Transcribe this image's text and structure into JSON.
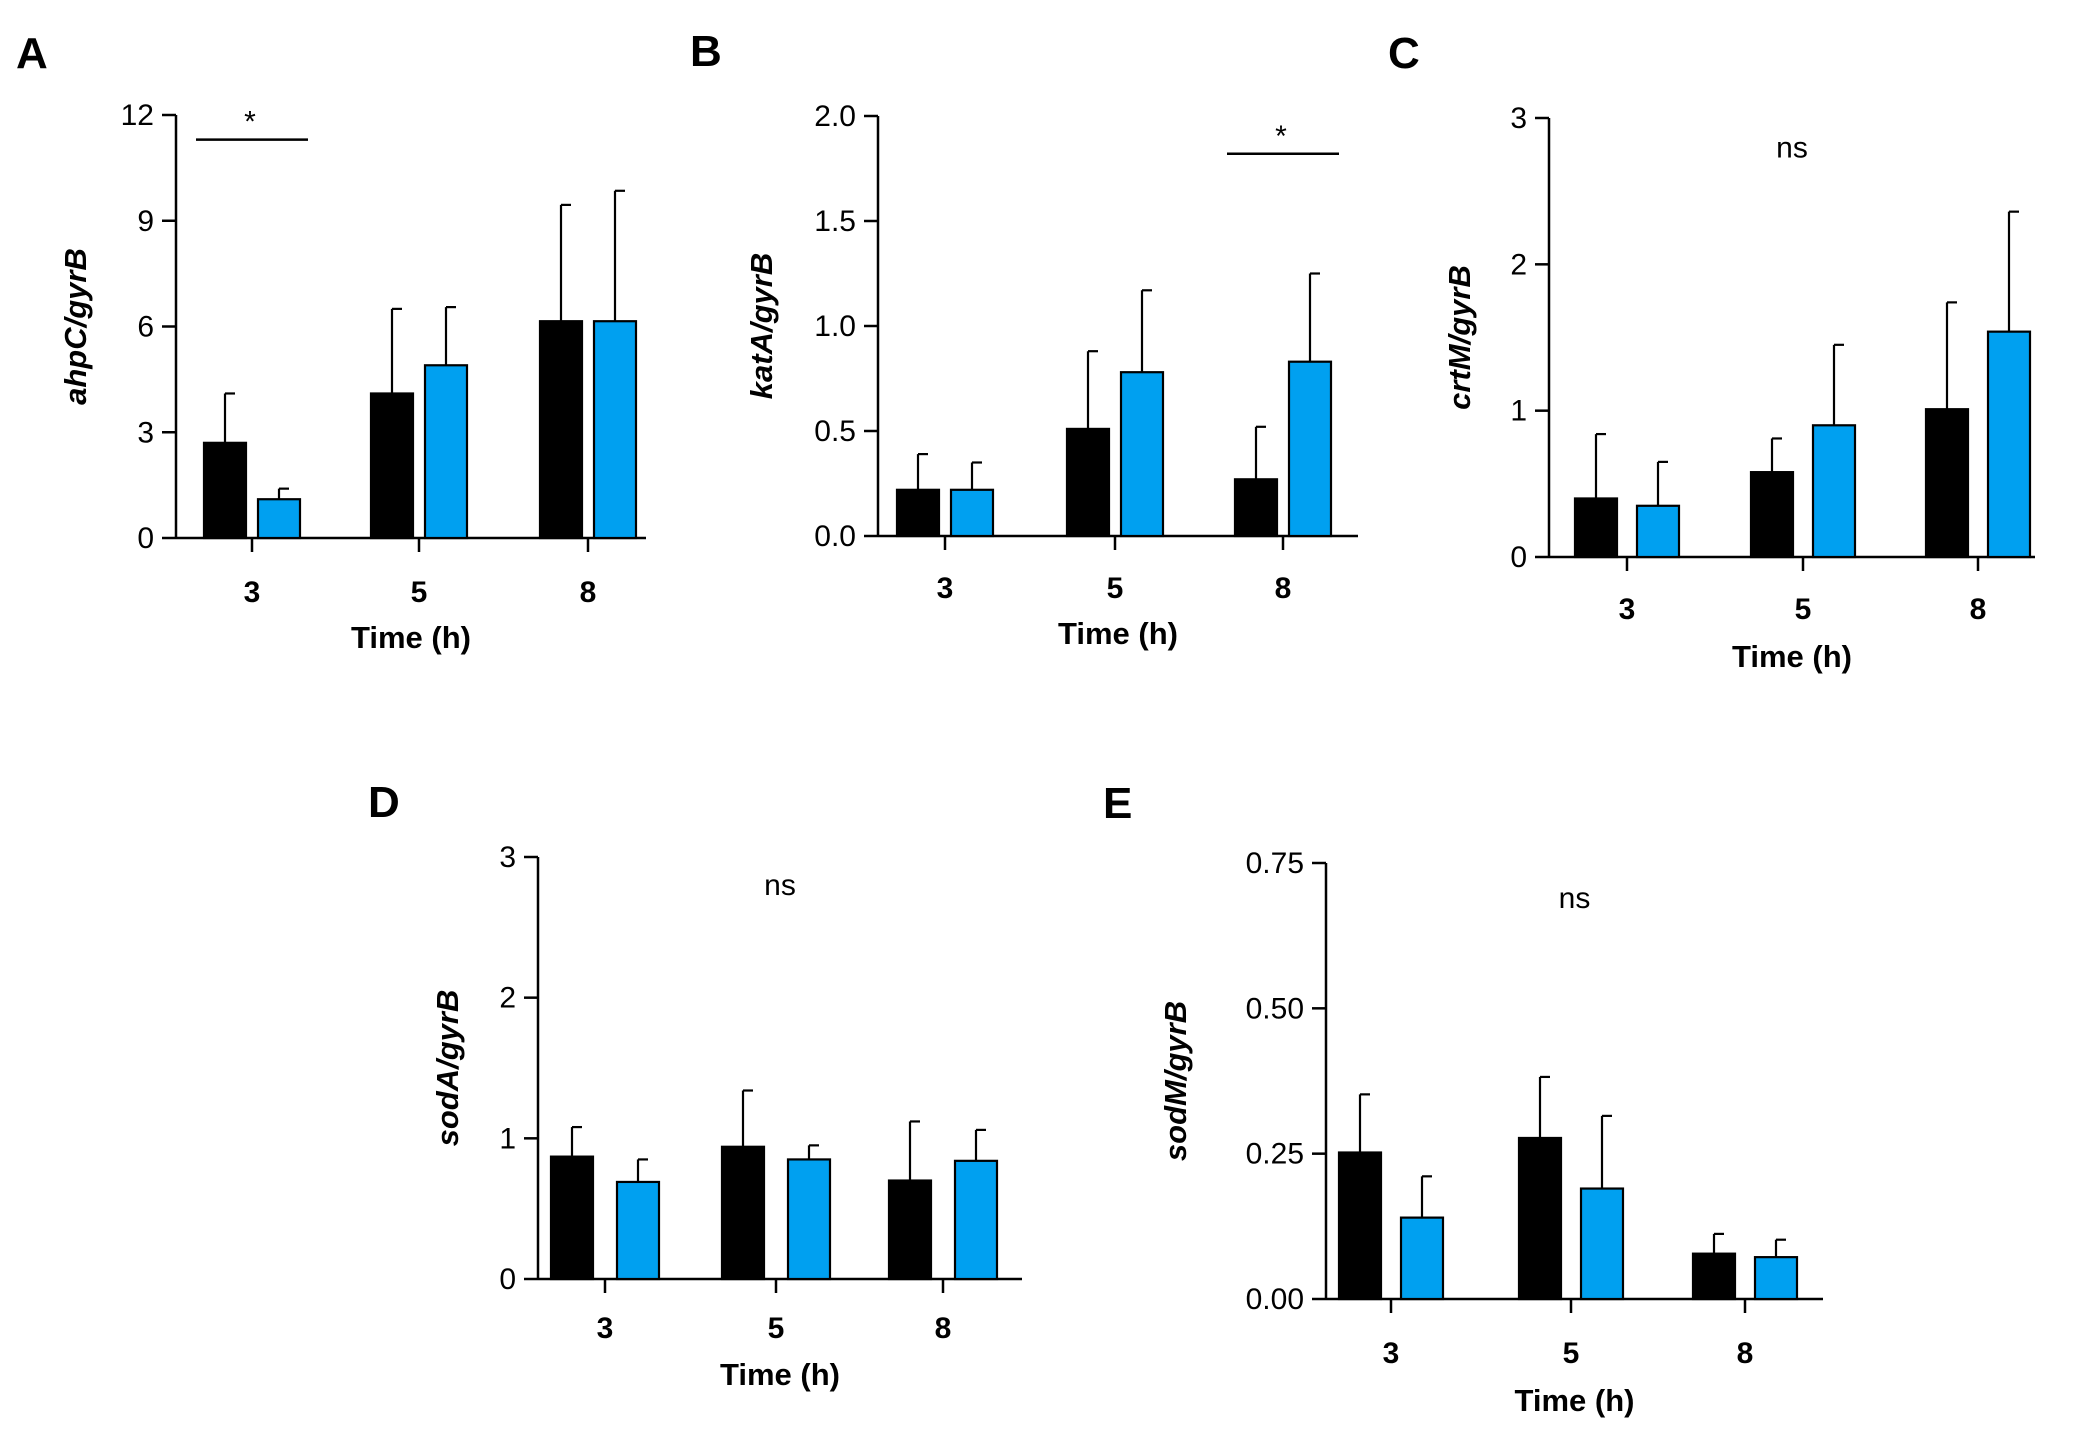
{
  "chart_data": [
    {
      "panel": "A",
      "type": "bar",
      "ylabel": "ahpC/gyrB",
      "xlabel": "Time (h)",
      "categories": [
        "3",
        "5",
        "8"
      ],
      "ylim": [
        0,
        12
      ],
      "yticks": [
        0,
        3,
        6,
        9,
        12
      ],
      "ytick_labels": [
        "0",
        "3",
        "6",
        "9",
        "12"
      ],
      "series": [
        {
          "name": "black",
          "color": "#000000",
          "values": [
            2.7,
            4.1,
            6.15
          ],
          "errors": [
            1.4,
            2.4,
            3.3
          ]
        },
        {
          "name": "blue",
          "color": "#00a0f0",
          "values": [
            1.1,
            4.9,
            6.15
          ],
          "errors": [
            0.3,
            1.65,
            3.7
          ]
        }
      ],
      "annotations": [
        {
          "text": "*",
          "bracket_category": "3",
          "y": 11.3
        }
      ]
    },
    {
      "panel": "B",
      "type": "bar",
      "ylabel": "katA/gyrB",
      "xlabel": "Time (h)",
      "categories": [
        "3",
        "5",
        "8"
      ],
      "ylim": [
        0,
        2.0
      ],
      "yticks": [
        0,
        0.5,
        1.0,
        1.5,
        2.0
      ],
      "ytick_labels": [
        "0.0",
        "0.5",
        "1.0",
        "1.5",
        "2.0"
      ],
      "series": [
        {
          "name": "black",
          "color": "#000000",
          "values": [
            0.22,
            0.51,
            0.27
          ],
          "errors": [
            0.17,
            0.37,
            0.25
          ]
        },
        {
          "name": "blue",
          "color": "#00a0f0",
          "values": [
            0.22,
            0.78,
            0.83
          ],
          "errors": [
            0.13,
            0.39,
            0.42
          ]
        }
      ],
      "annotations": [
        {
          "text": "*",
          "bracket_category": "8",
          "y": 1.82
        }
      ]
    },
    {
      "panel": "C",
      "type": "bar",
      "ylabel": "crtM/gyrB",
      "xlabel": "Time (h)",
      "categories": [
        "3",
        "5",
        "8"
      ],
      "ylim": [
        0,
        3
      ],
      "yticks": [
        0,
        1,
        2,
        3
      ],
      "ytick_labels": [
        "0",
        "1",
        "2",
        "3"
      ],
      "series": [
        {
          "name": "black",
          "color": "#000000",
          "values": [
            0.4,
            0.58,
            1.01
          ],
          "errors": [
            0.44,
            0.23,
            0.73
          ]
        },
        {
          "name": "blue",
          "color": "#00a0f0",
          "values": [
            0.35,
            0.9,
            1.54
          ],
          "errors": [
            0.3,
            0.55,
            0.82
          ]
        }
      ],
      "annotations": [
        {
          "text": "ns",
          "y": 2.8
        }
      ]
    },
    {
      "panel": "D",
      "type": "bar",
      "ylabel": "sodA/gyrB",
      "xlabel": "Time (h)",
      "categories": [
        "3",
        "5",
        "8"
      ],
      "ylim": [
        0,
        3
      ],
      "yticks": [
        0,
        1,
        2,
        3
      ],
      "ytick_labels": [
        "0",
        "1",
        "2",
        "3"
      ],
      "series": [
        {
          "name": "black",
          "color": "#000000",
          "values": [
            0.87,
            0.94,
            0.7
          ],
          "errors": [
            0.21,
            0.4,
            0.42
          ]
        },
        {
          "name": "blue",
          "color": "#00a0f0",
          "values": [
            0.69,
            0.85,
            0.84
          ],
          "errors": [
            0.16,
            0.1,
            0.22
          ]
        }
      ],
      "annotations": [
        {
          "text": "ns",
          "y": 2.8
        }
      ]
    },
    {
      "panel": "E",
      "type": "bar",
      "ylabel": "sodM/gyrB",
      "xlabel": "Time (h)",
      "categories": [
        "3",
        "5",
        "8"
      ],
      "ylim": [
        0,
        0.75
      ],
      "yticks": [
        0,
        0.25,
        0.5,
        0.75
      ],
      "ytick_labels": [
        "0.00",
        "0.25",
        "0.50",
        "0.75"
      ],
      "series": [
        {
          "name": "black",
          "color": "#000000",
          "values": [
            0.252,
            0.277,
            0.078
          ],
          "errors": [
            0.1,
            0.105,
            0.034
          ]
        },
        {
          "name": "blue",
          "color": "#00a0f0",
          "values": [
            0.14,
            0.19,
            0.072
          ],
          "errors": [
            0.071,
            0.125,
            0.03
          ]
        }
      ],
      "annotations": [
        {
          "text": "ns",
          "y": 0.69
        }
      ]
    }
  ]
}
